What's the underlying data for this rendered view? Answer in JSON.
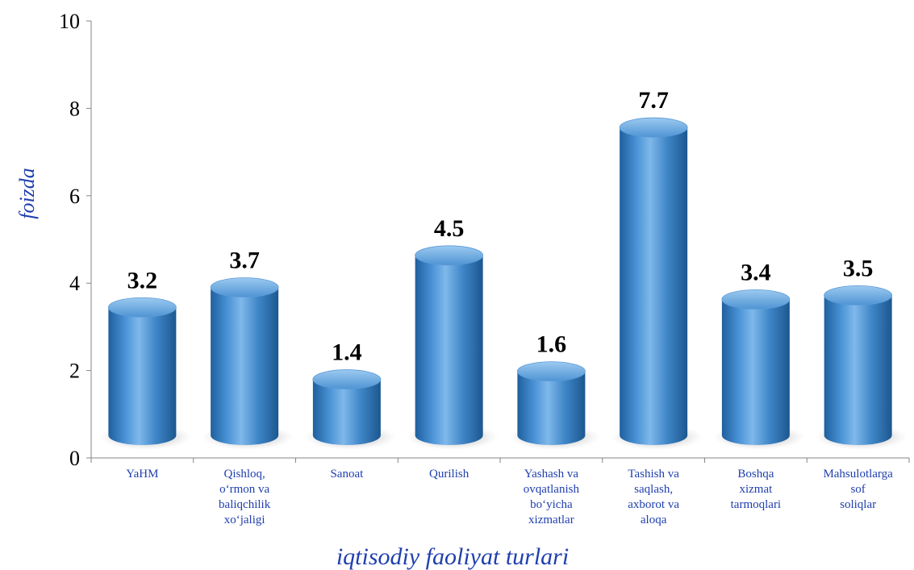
{
  "chart_data": {
    "type": "bar",
    "categories": [
      [
        "YaHM"
      ],
      [
        "Qishloq,",
        "o‘rmon va",
        "baliqchilik",
        "xo‘jaligi"
      ],
      [
        "Sanoat"
      ],
      [
        "Qurilish"
      ],
      [
        "Yashash va",
        "ovqatlanish",
        "bo‘yicha",
        "xizmatlar"
      ],
      [
        "Tashish va",
        "saqlash,",
        "axborot va",
        "aloqa"
      ],
      [
        "Boshqa",
        "xizmat",
        "tarmoqlari"
      ],
      [
        "Mahsulotlarga",
        "sof",
        "soliqlar"
      ]
    ],
    "values": [
      3.2,
      3.7,
      1.4,
      4.5,
      1.6,
      7.7,
      3.4,
      3.5
    ],
    "data_labels": [
      "3.2",
      "3.7",
      "1.4",
      "4.5",
      "1.6",
      "7.7",
      "3.4",
      "3.5"
    ],
    "xlabel": "iqtisodiy faoliyat turlari",
    "ylabel": "foizda",
    "ylim": [
      0,
      10
    ],
    "yticks": [
      "0",
      "2",
      "4",
      "6",
      "8",
      "10"
    ],
    "grid": false,
    "bar_color": "#3f86c8",
    "axis_title_color": "#1f3fae"
  }
}
